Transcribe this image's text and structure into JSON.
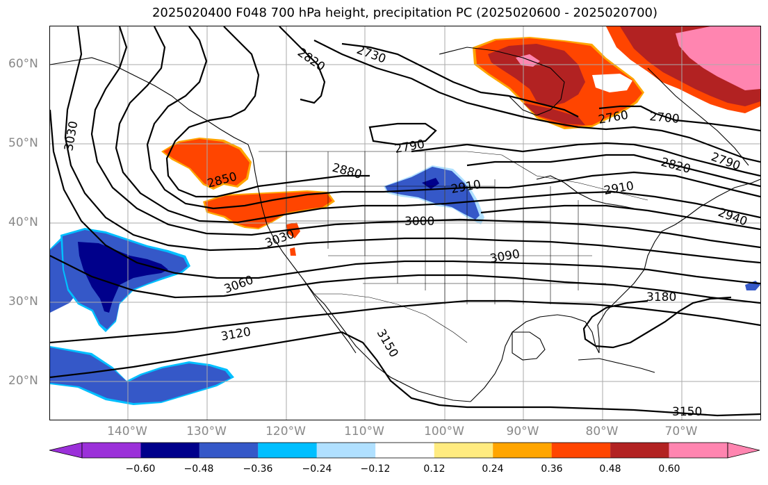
{
  "title": "2025020400 F048 700 hPa height, precipitation PC (2025020600 - 2025020700)",
  "lat_labels": [
    "60°N",
    "50°N",
    "40°N",
    "30°N",
    "20°N"
  ],
  "lon_labels": [
    "140°W",
    "130°W",
    "120°W",
    "110°W",
    "100°W",
    "90°W",
    "80°W",
    "70°W"
  ],
  "contour_labels": [
    "2820",
    "2730",
    "3030",
    "2850",
    "2880",
    "2790",
    "2910",
    "3000",
    "3030",
    "3090",
    "3060",
    "3120",
    "3150",
    "3180",
    "2760",
    "2700",
    "2820",
    "2790",
    "2940",
    "2910",
    "3150"
  ],
  "colorbar": {
    "ticks": [
      "−0.60",
      "−0.48",
      "−0.36",
      "−0.24",
      "−0.12",
      "0.12",
      "0.24",
      "0.36",
      "0.48",
      "0.60"
    ],
    "colors": [
      "#9b30d9",
      "#00008b",
      "#3558c8",
      "#00bfff",
      "#b0e0ff",
      "#ffffff",
      "#ffeb80",
      "#ffa500",
      "#ff4500",
      "#b22222",
      "#ff85b0",
      "#ff85b0"
    ]
  },
  "fill_colors": {
    "neg_deep": "#00008b",
    "neg_mid": "#3558c8",
    "neg_light": "#00bfff",
    "pos_orange": "#ff4500",
    "pos_red": "#b22222",
    "pos_pink": "#ff85b0",
    "pos_yellow": "#ffa500"
  }
}
